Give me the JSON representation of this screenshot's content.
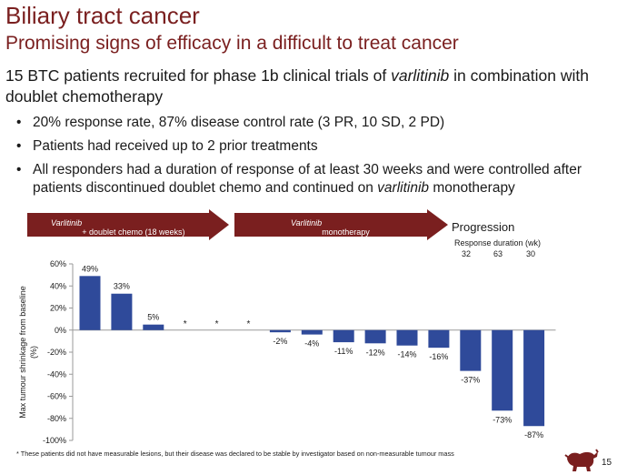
{
  "header": {
    "title": "Biliary tract cancer",
    "subtitle": "Promising signs of efficacy in a difficult to treat cancer"
  },
  "lead": {
    "pre": "15 BTC patients recruited for phase 1b clinical trials of ",
    "drug": "varlitinib",
    "post": " in combination with doublet chemotherapy"
  },
  "bullets": {
    "b1": "20% response rate, 87% disease control rate (3 PR, 10 SD, 2 PD)",
    "b2": "Patients had received up to 2 prior treatments",
    "b3_pre": "All responders had a duration of response of at least 30 weeks and were controlled after patients discontinued doublet chemo and continued on ",
    "b3_drug": "varlitinib",
    "b3_post": " monotherapy"
  },
  "phases": {
    "phase1_drug": "Varlitinib",
    "phase1_rest": " + doublet chemo (18 weeks)",
    "phase2_drug": "Varlitinib",
    "phase2_rest": " monotherapy",
    "progression": "Progression",
    "response_duration_label": "Response duration (wk)",
    "response_durations": [
      "32",
      "63",
      "30"
    ]
  },
  "colors": {
    "brand": "#7a1f1f",
    "bar": "#2f4a9a",
    "arrow": "#7a1f1f"
  },
  "chart_data": {
    "type": "bar",
    "title": "",
    "xlabel": "",
    "ylabel": "Max tumour shrinkage from baseline (%)",
    "ylim": [
      -100,
      60
    ],
    "yticks": [
      60,
      40,
      20,
      0,
      -20,
      -40,
      -60,
      -80,
      -100
    ],
    "ytick_labels": [
      "60%",
      "40%",
      "20%",
      "0%",
      "-20%",
      "-40%",
      "-60%",
      "-80%",
      "-100%"
    ],
    "grid": false,
    "series": [
      {
        "name": "Max tumour shrinkage",
        "values": [
          49,
          33,
          5,
          null,
          null,
          null,
          -2,
          -4,
          -11,
          -12,
          -14,
          -16,
          -37,
          -73,
          -87
        ],
        "labels": [
          "49%",
          "33%",
          "5%",
          "*",
          "*",
          "*",
          "-2%",
          "-4%",
          "-11%",
          "-12%",
          "-14%",
          "-16%",
          "-37%",
          "-73%",
          "-87%"
        ]
      }
    ]
  },
  "footnote": "* These patients did not have measurable lesions, but their disease was declared to be stable by investigator based on non-measurable tumour mass",
  "page_number": "15",
  "logo_icon": "bull-logo-icon"
}
